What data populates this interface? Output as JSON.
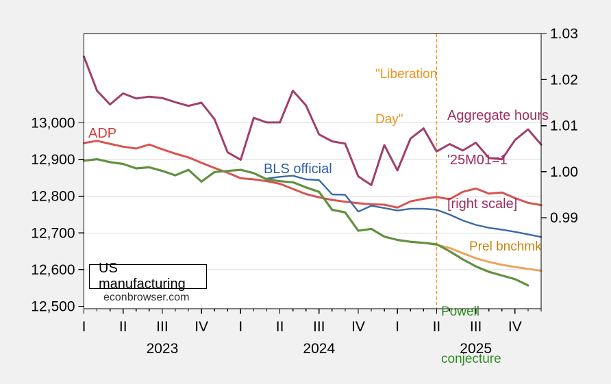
{
  "chart_data": {
    "type": "line",
    "title": "US manufacturing",
    "watermark": "econbrowser.com",
    "colors": {
      "page_bg": "#f1f1f1",
      "plot_bg": "#ffffff",
      "grid": "#d8d8d8",
      "axis": "#000000"
    },
    "x_months": [
      "2023-01",
      "2023-02",
      "2023-03",
      "2023-04",
      "2023-05",
      "2023-06",
      "2023-07",
      "2023-08",
      "2023-09",
      "2023-10",
      "2023-11",
      "2023-12",
      "2024-01",
      "2024-02",
      "2024-03",
      "2024-04",
      "2024-05",
      "2024-06",
      "2024-07",
      "2024-08",
      "2024-09",
      "2024-10",
      "2024-11",
      "2024-12",
      "2025-01",
      "2025-02",
      "2025-03",
      "2025-04",
      "2025-05",
      "2025-06",
      "2025-07",
      "2025-08",
      "2025-09",
      "2025-10",
      "2025-11",
      "2025-12"
    ],
    "x_axis": {
      "quarters": [
        {
          "label": "I",
          "month": 0
        },
        {
          "label": "II",
          "month": 3
        },
        {
          "label": "III",
          "month": 6
        },
        {
          "label": "IV",
          "month": 9
        },
        {
          "label": "I",
          "month": 12
        },
        {
          "label": "II",
          "month": 15
        },
        {
          "label": "III",
          "month": 18
        },
        {
          "label": "IV",
          "month": 21
        },
        {
          "label": "I",
          "month": 24
        },
        {
          "label": "II",
          "month": 27
        },
        {
          "label": "III",
          "month": 30
        },
        {
          "label": "IV",
          "month": 33
        }
      ],
      "years": [
        {
          "label": "2023",
          "month": 6
        },
        {
          "label": "2024",
          "month": 18
        },
        {
          "label": "2025",
          "month": 30
        }
      ]
    },
    "y_left": {
      "ticks": [
        {
          "label": "12,500",
          "value": 12500,
          "grid": false
        },
        {
          "label": "12,600",
          "value": 12600,
          "grid": true
        },
        {
          "label": "12,700",
          "value": 12700,
          "grid": true
        },
        {
          "label": "12,800",
          "value": 12800,
          "grid": true
        },
        {
          "label": "12,900",
          "value": 12900,
          "grid": true
        },
        {
          "label": "13,000",
          "value": 13000,
          "grid": true
        }
      ],
      "range": [
        12492,
        13243
      ]
    },
    "y_right": {
      "ticks": [
        {
          "label": "0.99",
          "value": 0.99
        },
        {
          "label": "1.00",
          "value": 1.0
        },
        {
          "label": "1.01",
          "value": 1.01
        },
        {
          "label": "1.02",
          "value": 1.02
        },
        {
          "label": "1.03",
          "value": 1.03
        }
      ],
      "range": [
        0.97,
        1.03
      ]
    },
    "event_line": {
      "month_index": 27,
      "color": "#ef9322",
      "label_lines": [
        "\"Liberation",
        "Day\""
      ]
    },
    "series": [
      {
        "name": "Aggregate hours",
        "slug": "aggregate-hours",
        "axis": "right",
        "color": "#a23e6b",
        "width": 3,
        "start_month": 0,
        "values": [
          1.025,
          1.0176,
          1.0146,
          1.017,
          1.0159,
          1.0163,
          1.016,
          1.0151,
          1.0143,
          1.015,
          1.0114,
          1.0042,
          1.0026,
          1.0117,
          1.0107,
          1.0107,
          1.0176,
          1.0144,
          1.0081,
          1.0066,
          1.0061,
          0.999,
          0.9971,
          1.0058,
          1.0003,
          1.0072,
          1.0094,
          1.0044,
          1.006,
          1.0046,
          1.0063,
          1.003,
          1.0027,
          1.0069,
          1.0092,
          1.0059
        ]
      },
      {
        "name": "ADP",
        "slug": "adp",
        "axis": "left",
        "color": "#d9534f",
        "width": 3,
        "start_month": 0,
        "values": [
          12945,
          12951,
          12943,
          12935,
          12930,
          12941,
          12928,
          12916,
          12906,
          12891,
          12877,
          12864,
          12849,
          12846,
          12841,
          12834,
          12820,
          12806,
          12797,
          12790,
          12785,
          12781,
          12778,
          12777,
          12769,
          12786,
          12793,
          12798,
          12792,
          12812,
          12821,
          12807,
          12810,
          12795,
          12782,
          12776
        ]
      },
      {
        "name": "BLS official",
        "slug": "bls-official",
        "axis": "left",
        "color": "#3a6aa6",
        "width": 2.4,
        "start_month": 14,
        "values": [
          12848,
          12853,
          12856,
          12846,
          12844,
          12805,
          12804,
          12758,
          12774,
          12768,
          12761,
          12766,
          12766,
          12763,
          12750,
          12734,
          12722,
          12714,
          12709,
          12703,
          12696,
          12689
        ]
      },
      {
        "name": "Prel bnchmk",
        "slug": "prel-bnchmk",
        "axis": "left",
        "color": "#eca55e",
        "width": 3,
        "start_month": 25,
        "values": [
          12676,
          12673,
          12668,
          12659,
          12645,
          12631,
          12621,
          12613,
          12607,
          12602,
          12597
        ]
      },
      {
        "name": "Powell conjecture",
        "slug": "powell-conjecture",
        "axis": "left",
        "color": "#619140",
        "width": 3.2,
        "start_month": 0,
        "values": [
          12897,
          12901,
          12893,
          12888,
          12876,
          12879,
          12869,
          12857,
          12872,
          12840,
          12866,
          12869,
          12872,
          12863,
          12846,
          12841,
          12838,
          12824,
          12812,
          12763,
          12756,
          12706,
          12711,
          12690,
          12681,
          12676,
          12673,
          12669,
          12650,
          12628,
          12609,
          12594,
          12584,
          12574,
          12557
        ]
      }
    ],
    "annotations": {
      "adp": {
        "text": "ADP",
        "color": "#d43a34"
      },
      "bls": {
        "text": "BLS official",
        "color": "#2e5fa7"
      },
      "agg": {
        "lines": [
          "Aggregate hours",
          "'25M01=1",
          "[right scale]"
        ],
        "color": "#9c2b60"
      },
      "lib": {
        "lines": [
          "\"Liberation",
          "Day\""
        ],
        "color": "#f0941f"
      },
      "prel": {
        "text": "Prel bnchmk",
        "color": "#c8860e"
      },
      "powell": {
        "lines": [
          "Powell",
          "conjecture"
        ],
        "color": "#2e8b22"
      }
    }
  }
}
